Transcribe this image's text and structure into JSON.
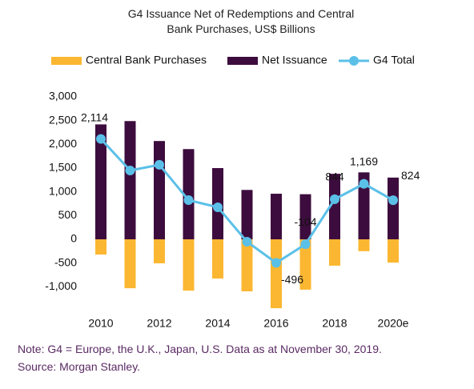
{
  "chart_data": {
    "type": "bar",
    "title": "G4 Issuance Net of Redemptions and Central Bank Purchases, US$ Billions",
    "categories": [
      "2010",
      null,
      "2012",
      null,
      "2014",
      null,
      "2016",
      null,
      "2018",
      null,
      "2020e"
    ],
    "series": [
      {
        "name": "Central Bank Purchases",
        "color": "#fbb731",
        "values": [
          -320,
          -1030,
          -505,
          -1080,
          -825,
          -1095,
          -1450,
          -1060,
          -555,
          -250,
          -490
        ]
      },
      {
        "name": "Net Issuance",
        "color": "#3d0c3e",
        "values": [
          2420,
          2490,
          2070,
          1900,
          1500,
          1040,
          960,
          950,
          1380,
          1410,
          1300
        ]
      },
      {
        "name": "G4 Total",
        "color": "#5bc0e8",
        "type": "line",
        "values": [
          2114,
          1450,
          1570,
          825,
          675,
          -50,
          -496,
          -104,
          844,
          1169,
          824
        ],
        "value_labels": [
          "2,114",
          null,
          null,
          null,
          null,
          null,
          "-496",
          "-104",
          "844",
          "1,169",
          "824"
        ]
      }
    ],
    "ylim": [
      -1500,
      3000
    ],
    "yticks": [
      {
        "value": 3000,
        "label": "3,000"
      },
      {
        "value": 2500,
        "label": "2,500"
      },
      {
        "value": 2000,
        "label": "2,000"
      },
      {
        "value": 1500,
        "label": "1,500"
      },
      {
        "value": 1000,
        "label": "1,000"
      },
      500,
      0,
      -500,
      {
        "value": -1000,
        "label": "-1,000"
      }
    ],
    "grid": false,
    "legend": "top",
    "note": "Note: G4 = Europe, the U.K., Japan, U.S. Data as at November 30, 2019.",
    "source": "Source: Morgan Stanley."
  }
}
